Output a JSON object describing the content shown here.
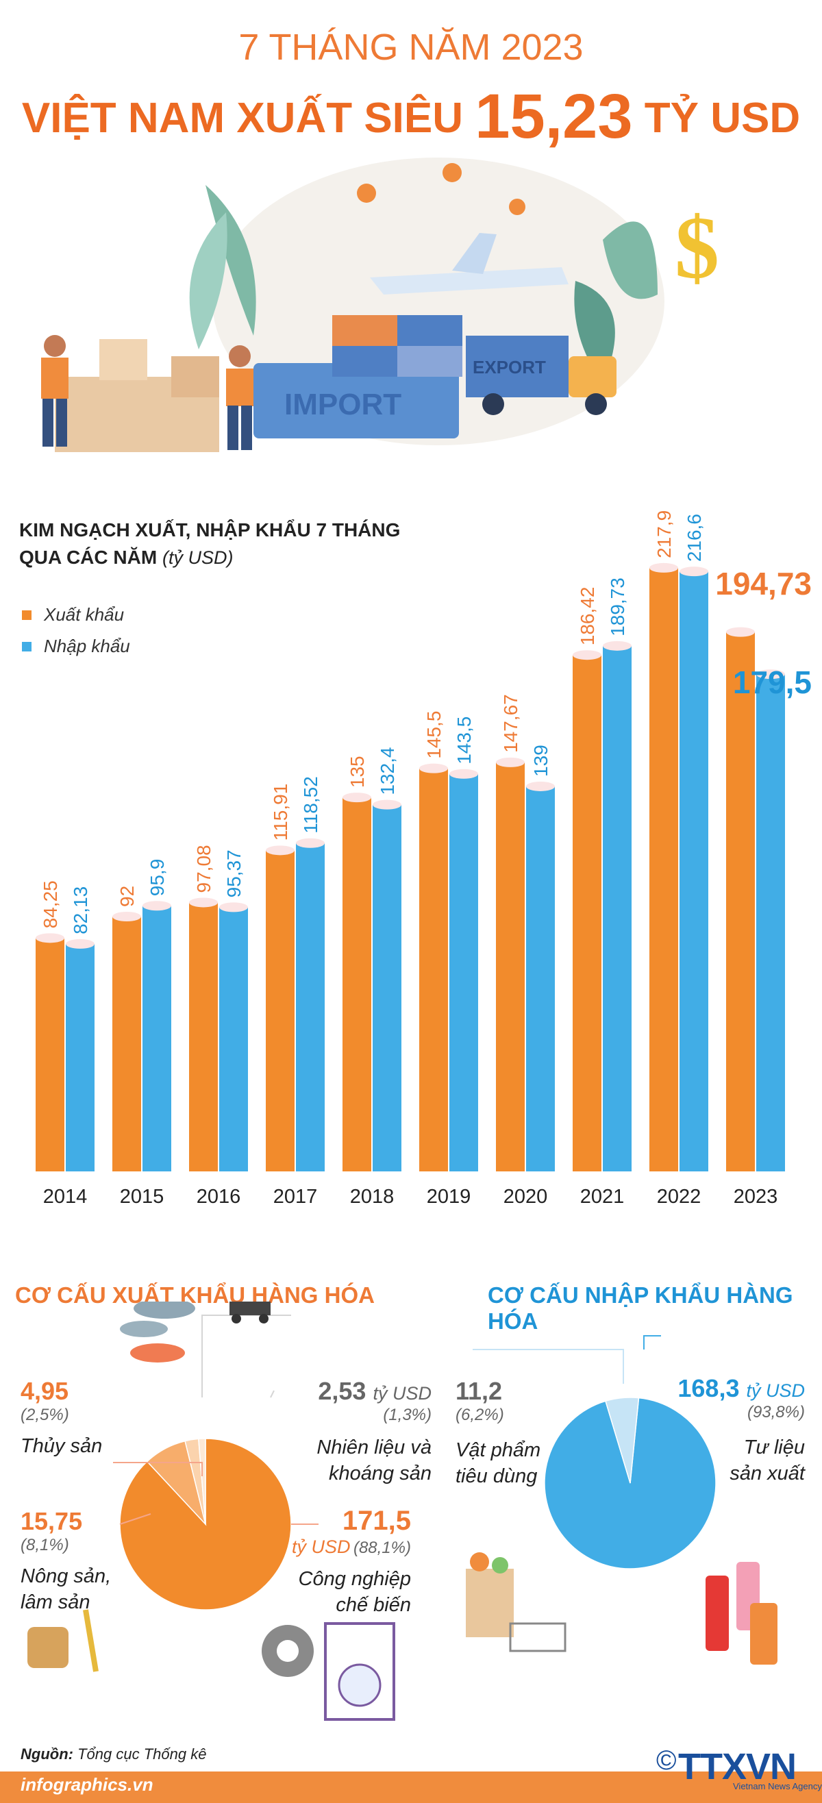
{
  "header": {
    "line1": "7 THÁNG NĂM 2023",
    "line2_prefix": "VIỆT NAM XUẤT SIÊU",
    "line2_value": "15,23",
    "line2_suffix": "TỶ USD"
  },
  "illustration": {
    "import_text": "IMPORT",
    "export_text": "EXPORT",
    "dollar_sign": "$"
  },
  "chart_heading": {
    "line1": "KIM NGẠCH XUẤT, NHẬP KHẨU 7 THÁNG",
    "line2": "QUA CÁC NĂM",
    "unit": "(tỷ USD)"
  },
  "chart_data": {
    "type": "bar",
    "categories": [
      "2014",
      "2015",
      "2016",
      "2017",
      "2018",
      "2019",
      "2020",
      "2021",
      "2022",
      "2023"
    ],
    "series": [
      {
        "name": "Xuất khẩu",
        "color": "#f28b2c",
        "values": [
          84.25,
          92,
          97.08,
          115.91,
          135,
          145.5,
          147.67,
          186.42,
          217.9,
          194.73
        ],
        "labels": [
          "84,25",
          "92",
          "97,08",
          "115,91",
          "135",
          "145,5",
          "147,67",
          "186,42",
          "217,9",
          "194,73"
        ]
      },
      {
        "name": "Nhập khẩu",
        "color": "#41ade6",
        "values": [
          82.13,
          95.9,
          95.37,
          118.52,
          132.4,
          143.5,
          139,
          189.73,
          216.6,
          179.5
        ],
        "labels": [
          "82,13",
          "95,9",
          "95,37",
          "118,52",
          "132,4",
          "143,5",
          "139",
          "189,73",
          "216,6",
          "179,5"
        ]
      }
    ],
    "ylabel": "",
    "ylim": [
      0,
      230
    ]
  },
  "export_structure": {
    "title": "CƠ CẤU XUẤT KHẨU HÀNG HÓA",
    "color": "#f28b2c",
    "slices": [
      {
        "name": "Công nghiệp chế biến",
        "value": 171.5,
        "value_label": "171,5",
        "unit": "tỷ USD",
        "pct": "(88,1%)",
        "label_lines": [
          "Công nghiệp",
          "chế biến"
        ]
      },
      {
        "name": "Thủy sản",
        "value": 4.95,
        "value_label": "4,95",
        "pct": "(2,5%)",
        "label_lines": [
          "Thủy sản"
        ]
      },
      {
        "name": "Nông sản, lâm sản",
        "value": 15.75,
        "value_label": "15,75",
        "pct": "(8,1%)",
        "label_lines": [
          "Nông sản,",
          "lâm sản"
        ]
      },
      {
        "name": "Nhiên liệu và khoáng sản",
        "value": 2.53,
        "value_label": "2,53",
        "unit": "tỷ USD",
        "pct": "(1,3%)",
        "label_lines": [
          "Nhiên liệu và",
          "khoáng sản"
        ]
      }
    ]
  },
  "import_structure": {
    "title": "CƠ CẤU NHẬP KHẨU HÀNG HÓA",
    "color": "#41ade6",
    "slices": [
      {
        "name": "Tư liệu sản xuất",
        "value": 168.3,
        "value_label": "168,3",
        "unit": "tỷ USD",
        "pct": "(93,8%)",
        "label_lines": [
          "Tư liệu",
          "sản xuất"
        ]
      },
      {
        "name": "Vật phẩm tiêu dùng",
        "value": 11.2,
        "value_label": "11,2",
        "pct": "(6,2%)",
        "label_lines": [
          "Vật phẩm",
          "tiêu dùng"
        ]
      }
    ]
  },
  "footer": {
    "source_label": "Nguồn:",
    "source_value": "Tổng cục Thống kê",
    "site": "infographics.vn",
    "brand": "TTXVN",
    "brand_sub": "Vietnam News Agency",
    "copyright": "©"
  }
}
